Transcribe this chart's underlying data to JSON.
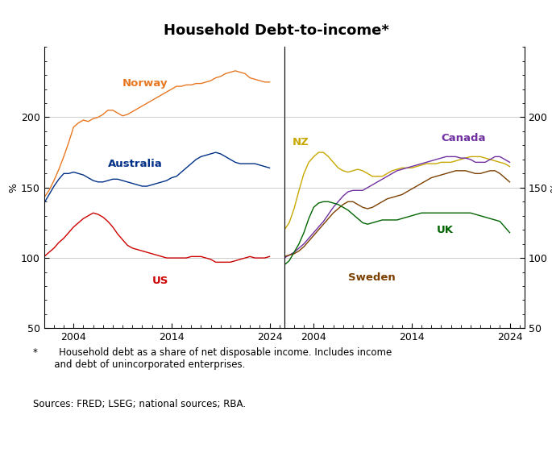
{
  "title": "Household Debt-to-income*",
  "footnote": "*       Household debt as a share of net disposable income. Includes income\n       and debt of unincorporated enterprises.",
  "sources": "Sources: FRED; LSEG; national sources; RBA.",
  "ylim": [
    50,
    250
  ],
  "yticks": [
    50,
    100,
    150,
    200
  ],
  "ylabel": "%",
  "xlim_left": [
    2001.0,
    2025.5
  ],
  "xlim_right": [
    2001.0,
    2025.5
  ],
  "xticks": [
    2004,
    2014,
    2024
  ],
  "panel_left": {
    "Norway": {
      "color": "#E87722",
      "years": [
        2001,
        2001.5,
        2002,
        2002.5,
        2003,
        2003.5,
        2004,
        2004.5,
        2005,
        2005.5,
        2006,
        2006.5,
        2007,
        2007.5,
        2008,
        2008.5,
        2009,
        2009.5,
        2010,
        2010.5,
        2011,
        2011.5,
        2012,
        2012.5,
        2013,
        2013.5,
        2014,
        2014.5,
        2015,
        2015.5,
        2016,
        2016.5,
        2017,
        2017.5,
        2018,
        2018.5,
        2019,
        2019.5,
        2020,
        2020.5,
        2021,
        2021.5,
        2022,
        2022.5,
        2023,
        2023.5,
        2024
      ],
      "values": [
        143,
        148,
        155,
        163,
        172,
        182,
        193,
        196,
        198,
        197,
        199,
        200,
        202,
        205,
        205,
        203,
        201,
        202,
        204,
        206,
        208,
        210,
        212,
        214,
        216,
        218,
        220,
        222,
        222,
        223,
        223,
        224,
        224,
        225,
        226,
        228,
        229,
        231,
        232,
        233,
        232,
        231,
        228,
        227,
        226,
        225,
        225
      ]
    },
    "Australia": {
      "color": "#003087",
      "years": [
        2001,
        2001.5,
        2002,
        2002.5,
        2003,
        2003.5,
        2004,
        2004.5,
        2005,
        2005.5,
        2006,
        2006.5,
        2007,
        2007.5,
        2008,
        2008.5,
        2009,
        2009.5,
        2010,
        2010.5,
        2011,
        2011.5,
        2012,
        2012.5,
        2013,
        2013.5,
        2014,
        2014.5,
        2015,
        2015.5,
        2016,
        2016.5,
        2017,
        2017.5,
        2018,
        2018.5,
        2019,
        2019.5,
        2020,
        2020.5,
        2021,
        2021.5,
        2022,
        2022.5,
        2023,
        2023.5,
        2024
      ],
      "values": [
        139,
        145,
        151,
        156,
        160,
        160,
        161,
        160,
        159,
        157,
        155,
        154,
        154,
        155,
        156,
        156,
        155,
        154,
        153,
        152,
        151,
        151,
        152,
        153,
        154,
        155,
        157,
        158,
        161,
        164,
        167,
        170,
        172,
        173,
        174,
        175,
        174,
        172,
        170,
        168,
        167,
        167,
        167,
        167,
        166,
        165,
        164
      ]
    },
    "US": {
      "color": "#CC0000",
      "years": [
        2001,
        2001.5,
        2002,
        2002.5,
        2003,
        2003.5,
        2004,
        2004.5,
        2005,
        2005.5,
        2006,
        2006.5,
        2007,
        2007.5,
        2008,
        2008.5,
        2009,
        2009.5,
        2010,
        2010.5,
        2011,
        2011.5,
        2012,
        2012.5,
        2013,
        2013.5,
        2014,
        2014.5,
        2015,
        2015.5,
        2016,
        2016.5,
        2017,
        2017.5,
        2018,
        2018.5,
        2019,
        2019.5,
        2020,
        2020.5,
        2021,
        2021.5,
        2022,
        2022.5,
        2023,
        2023.5,
        2024
      ],
      "values": [
        101,
        104,
        107,
        111,
        114,
        118,
        122,
        125,
        128,
        130,
        132,
        131,
        129,
        126,
        122,
        117,
        113,
        109,
        107,
        106,
        105,
        104,
        103,
        102,
        101,
        100,
        100,
        100,
        100,
        100,
        101,
        101,
        101,
        100,
        99,
        97,
        97,
        97,
        97,
        98,
        99,
        100,
        101,
        100,
        100,
        100,
        101
      ]
    }
  },
  "panel_right": {
    "NZ": {
      "color": "#C8A800",
      "years": [
        2001,
        2001.5,
        2002,
        2002.5,
        2003,
        2003.5,
        2004,
        2004.5,
        2005,
        2005.5,
        2006,
        2006.5,
        2007,
        2007.5,
        2008,
        2008.5,
        2009,
        2009.5,
        2010,
        2010.5,
        2011,
        2011.5,
        2012,
        2012.5,
        2013,
        2013.5,
        2014,
        2014.5,
        2015,
        2015.5,
        2016,
        2016.5,
        2017,
        2017.5,
        2018,
        2018.5,
        2019,
        2019.5,
        2020,
        2020.5,
        2021,
        2021.5,
        2022,
        2022.5,
        2023,
        2023.5,
        2024
      ],
      "values": [
        120,
        125,
        135,
        148,
        160,
        168,
        172,
        175,
        175,
        172,
        168,
        164,
        162,
        161,
        162,
        163,
        162,
        160,
        158,
        158,
        158,
        160,
        162,
        163,
        164,
        164,
        164,
        165,
        166,
        167,
        167,
        167,
        168,
        168,
        168,
        169,
        170,
        171,
        172,
        172,
        172,
        171,
        170,
        169,
        168,
        167,
        165
      ]
    },
    "Canada": {
      "color": "#7030A0",
      "years": [
        2001,
        2001.5,
        2002,
        2002.5,
        2003,
        2003.5,
        2004,
        2004.5,
        2005,
        2005.5,
        2006,
        2006.5,
        2007,
        2007.5,
        2008,
        2008.5,
        2009,
        2009.5,
        2010,
        2010.5,
        2011,
        2011.5,
        2012,
        2012.5,
        2013,
        2013.5,
        2014,
        2014.5,
        2015,
        2015.5,
        2016,
        2016.5,
        2017,
        2017.5,
        2018,
        2018.5,
        2019,
        2019.5,
        2020,
        2020.5,
        2021,
        2021.5,
        2022,
        2022.5,
        2023,
        2023.5,
        2024
      ],
      "values": [
        100,
        102,
        104,
        107,
        110,
        114,
        118,
        122,
        126,
        131,
        136,
        140,
        144,
        147,
        148,
        148,
        148,
        150,
        152,
        154,
        156,
        158,
        160,
        162,
        163,
        164,
        165,
        166,
        167,
        168,
        169,
        170,
        171,
        172,
        172,
        172,
        171,
        171,
        170,
        168,
        168,
        168,
        170,
        172,
        172,
        170,
        168
      ]
    },
    "Sweden": {
      "color": "#7B3F00",
      "years": [
        2001,
        2001.5,
        2002,
        2002.5,
        2003,
        2003.5,
        2004,
        2004.5,
        2005,
        2005.5,
        2006,
        2006.5,
        2007,
        2007.5,
        2008,
        2008.5,
        2009,
        2009.5,
        2010,
        2010.5,
        2011,
        2011.5,
        2012,
        2012.5,
        2013,
        2013.5,
        2014,
        2014.5,
        2015,
        2015.5,
        2016,
        2016.5,
        2017,
        2017.5,
        2018,
        2018.5,
        2019,
        2019.5,
        2020,
        2020.5,
        2021,
        2021.5,
        2022,
        2022.5,
        2023,
        2023.5,
        2024
      ],
      "values": [
        101,
        102,
        103,
        105,
        108,
        112,
        116,
        120,
        124,
        128,
        132,
        135,
        138,
        140,
        140,
        138,
        136,
        135,
        136,
        138,
        140,
        142,
        143,
        144,
        145,
        147,
        149,
        151,
        153,
        155,
        157,
        158,
        159,
        160,
        161,
        162,
        162,
        162,
        161,
        160,
        160,
        161,
        162,
        162,
        160,
        157,
        154
      ]
    },
    "UK": {
      "color": "#006400",
      "years": [
        2001,
        2001.5,
        2002,
        2002.5,
        2003,
        2003.5,
        2004,
        2004.5,
        2005,
        2005.5,
        2006,
        2006.5,
        2007,
        2007.5,
        2008,
        2008.5,
        2009,
        2009.5,
        2010,
        2010.5,
        2011,
        2011.5,
        2012,
        2012.5,
        2013,
        2013.5,
        2014,
        2014.5,
        2015,
        2015.5,
        2016,
        2016.5,
        2017,
        2017.5,
        2018,
        2018.5,
        2019,
        2019.5,
        2020,
        2020.5,
        2021,
        2021.5,
        2022,
        2022.5,
        2023,
        2023.5,
        2024
      ],
      "values": [
        95,
        98,
        104,
        110,
        118,
        128,
        136,
        139,
        140,
        140,
        139,
        138,
        136,
        134,
        131,
        128,
        125,
        124,
        125,
        126,
        127,
        127,
        127,
        127,
        128,
        129,
        130,
        131,
        132,
        132,
        132,
        132,
        132,
        132,
        132,
        132,
        132,
        132,
        132,
        131,
        130,
        129,
        128,
        127,
        126,
        122,
        118
      ]
    }
  }
}
